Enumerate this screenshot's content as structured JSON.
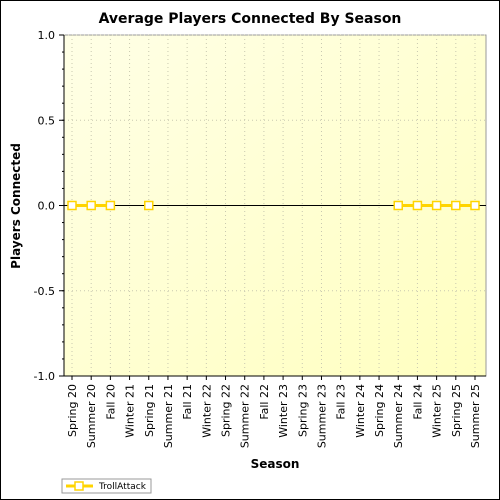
{
  "chart_data": {
    "type": "line",
    "title": "Average Players Connected By Season",
    "xlabel": "Season",
    "ylabel": "Players Connected",
    "ylim": [
      -1.0,
      1.0
    ],
    "yticks": [
      "1.0",
      "0.5",
      "0.0",
      "-0.5",
      "-1.0"
    ],
    "categories": [
      "Spring 20",
      "Summer 20",
      "Fall 20",
      "Winter 21",
      "Spring 21",
      "Summer 21",
      "Fall 21",
      "Winter 22",
      "Spring 22",
      "Summer 22",
      "Fall 22",
      "Winter 23",
      "Spring 23",
      "Summer 23",
      "Fall 23",
      "Winter 24",
      "Spring 24",
      "Summer 24",
      "Fall 24",
      "Winter 25",
      "Spring 25",
      "Summer 25"
    ],
    "series": [
      {
        "name": "TrollAttack",
        "color": "#ffd400",
        "values": [
          0,
          0,
          0,
          null,
          0,
          null,
          null,
          null,
          null,
          null,
          null,
          null,
          null,
          null,
          null,
          null,
          null,
          0,
          0,
          0,
          0,
          0
        ]
      }
    ],
    "grid": true,
    "legend": "bottom-left",
    "background_gradient": [
      "#ffffe6",
      "#ffffc0"
    ]
  }
}
